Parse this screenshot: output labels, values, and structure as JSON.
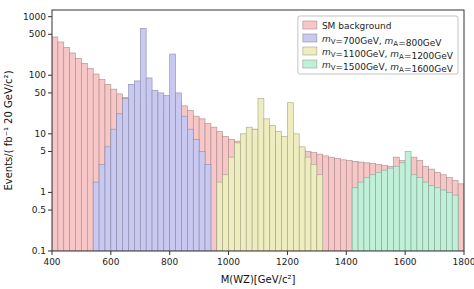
{
  "chart_data": {
    "type": "histogram",
    "xlabel": "M(WZ)[GeV/c²]",
    "ylabel": "Events/( fb⁻¹ 20 GeV/c²)",
    "log": "y",
    "grid": false,
    "legend": "upper right",
    "xlim": [
      400,
      1800
    ],
    "ylim": [
      0.1,
      1300
    ],
    "xticks": [
      400,
      600,
      800,
      1000,
      1200,
      1400,
      1600,
      1800
    ],
    "yticks": [
      0.1,
      0.5,
      1,
      5,
      10,
      50,
      100,
      500,
      1000
    ],
    "series": [
      {
        "name": "SM background",
        "color": "#f7c6c6",
        "bins": [
          400,
          420,
          440,
          460,
          480,
          500,
          520,
          540,
          560,
          580,
          600,
          620,
          640,
          660,
          680,
          700,
          720,
          740,
          760,
          780,
          800,
          820,
          840,
          860,
          880,
          900,
          920,
          940,
          960,
          980,
          1000,
          1020,
          1040,
          1060,
          1080,
          1100,
          1120,
          1140,
          1160,
          1180,
          1200,
          1220,
          1240,
          1260,
          1280,
          1300,
          1320,
          1340,
          1360,
          1380,
          1400,
          1420,
          1440,
          1460,
          1480,
          1500,
          1520,
          1540,
          1560,
          1580,
          1600,
          1620,
          1640,
          1660,
          1680,
          1700,
          1720,
          1740,
          1760,
          1780,
          1800
        ],
        "values": [
          450,
          370,
          300,
          240,
          195,
          160,
          130,
          105,
          85,
          70,
          58,
          48,
          42,
          38,
          35,
          32,
          30,
          28,
          25,
          22,
          40,
          35,
          30,
          25,
          20,
          18,
          15,
          13,
          11,
          9,
          8,
          7.5,
          7,
          9,
          12,
          11,
          9,
          8,
          7,
          6,
          7,
          6,
          5.5,
          5,
          4.8,
          4.5,
          4.2,
          4.0,
          3.8,
          3.6,
          3.5,
          3.4,
          3.3,
          3.2,
          3.1,
          3.0,
          2.9,
          2.8,
          4,
          3.5,
          3,
          4,
          3.5,
          2.8,
          2.5,
          2.2,
          2.0,
          1.8,
          1.6,
          1.4
        ]
      },
      {
        "name": "mV=700GeV, mA=800GeV",
        "color": "#c8c8f0",
        "bins": [
          540,
          560,
          580,
          600,
          620,
          640,
          660,
          680,
          700,
          720,
          740,
          760,
          780,
          800,
          820,
          840,
          860,
          880,
          900,
          920,
          940
        ],
        "values": [
          1.5,
          3,
          6,
          12,
          22,
          40,
          70,
          80,
          630,
          90,
          55,
          50,
          45,
          230,
          50,
          20,
          12,
          8,
          5,
          3
        ]
      },
      {
        "name": "mV=1100GeV, mA=1200GeV",
        "color": "#ededc0",
        "bins": [
          960,
          980,
          1000,
          1020,
          1040,
          1060,
          1080,
          1100,
          1120,
          1140,
          1160,
          1180,
          1200,
          1220,
          1240,
          1260,
          1280,
          1300,
          1320
        ],
        "values": [
          1.5,
          2,
          4,
          7,
          10,
          13,
          12,
          40,
          18,
          14,
          11,
          9,
          34,
          10,
          6,
          4,
          3,
          2
        ]
      },
      {
        "name": "mV=1500GeV, mA=1600GeV",
        "color": "#c0f0d8",
        "bins": [
          1420,
          1440,
          1460,
          1480,
          1500,
          1520,
          1540,
          1560,
          1580,
          1600,
          1620,
          1640,
          1660,
          1680,
          1700,
          1720,
          1740,
          1760,
          1780
        ],
        "values": [
          1.2,
          1.5,
          1.8,
          2,
          2.2,
          2.4,
          2.6,
          2.8,
          3.2,
          5,
          2,
          1.8,
          1.5,
          1.3,
          1.2,
          1.1,
          1.0,
          0.9
        ]
      }
    ]
  }
}
